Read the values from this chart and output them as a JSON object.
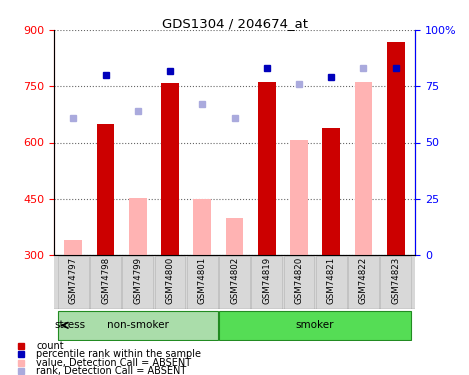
{
  "title": "GDS1304 / 204674_at",
  "samples": [
    "GSM74797",
    "GSM74798",
    "GSM74799",
    "GSM74800",
    "GSM74801",
    "GSM74802",
    "GSM74819",
    "GSM74820",
    "GSM74821",
    "GSM74822",
    "GSM74823"
  ],
  "non_smoker_samples": [
    "GSM74797",
    "GSM74798",
    "GSM74799",
    "GSM74800",
    "GSM74801"
  ],
  "smoker_samples": [
    "GSM74802",
    "GSM74819",
    "GSM74820",
    "GSM74821",
    "GSM74822",
    "GSM74823"
  ],
  "red_bar_values": {
    "GSM74797": null,
    "GSM74798": 650,
    "GSM74799": null,
    "GSM74800": 760,
    "GSM74801": null,
    "GSM74802": null,
    "GSM74819": 762,
    "GSM74820": null,
    "GSM74821": 638,
    "GSM74822": null,
    "GSM74823": 868
  },
  "pink_bar_values": {
    "GSM74797": 340,
    "GSM74798": null,
    "GSM74799": 452,
    "GSM74800": null,
    "GSM74801": 450,
    "GSM74802": 400,
    "GSM74819": null,
    "GSM74820": 608,
    "GSM74821": null,
    "GSM74822": 762,
    "GSM74823": null
  },
  "dark_blue_pct": {
    "GSM74797": null,
    "GSM74798": 80,
    "GSM74799": null,
    "GSM74800": 82,
    "GSM74801": null,
    "GSM74802": null,
    "GSM74819": 83,
    "GSM74820": null,
    "GSM74821": 79,
    "GSM74822": null,
    "GSM74823": 83
  },
  "light_blue_pct": {
    "GSM74797": 61,
    "GSM74798": null,
    "GSM74799": 64,
    "GSM74800": null,
    "GSM74801": 67,
    "GSM74802": 61,
    "GSM74819": null,
    "GSM74820": 76,
    "GSM74821": null,
    "GSM74822": 83,
    "GSM74823": null
  },
  "ylim_left": [
    300,
    900
  ],
  "ylim_right": [
    0,
    100
  ],
  "yticks_left": [
    300,
    450,
    600,
    750,
    900
  ],
  "yticks_right": [
    0,
    25,
    50,
    75,
    100
  ],
  "bar_color": "#cc0000",
  "pink_bar_color": "#ffb3b3",
  "dark_blue_color": "#0000bb",
  "light_blue_color": "#aaaadd",
  "non_smoker_color": "#aaddaa",
  "smoker_color": "#55dd55",
  "bar_width": 0.55
}
